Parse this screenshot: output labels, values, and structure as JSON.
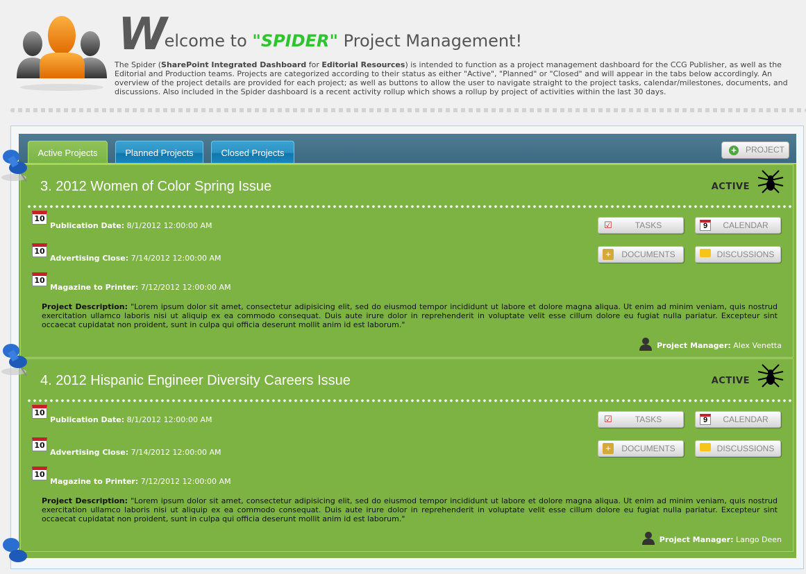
{
  "header": {
    "welcome_initial": "W",
    "welcome_rest": "elcome to ",
    "welcome_brand": "\"SPIDER\"",
    "welcome_suffix": " Project Management!",
    "intro": {
      "p1": "The Spider (",
      "b1": "SharePoint Integrated Dashboard",
      "p2": " for ",
      "b2": "Editorial Resources",
      "p3": ") is intended to function as a project management dashboard for the CCG Publisher, as well as the Editorial and Production teams. Projects are categorized according to their status as either \"Active\", \"Planned\" or \"Closed\" and will appear in the tabs below accordingly. An overview of the project details are provided for each project; as well as buttons to allow the user to navigate straight to the project tasks, calendar/milestones, documents, and discussions. Also included in the Spider dashboard is a recent activity rollup which shows a rollup by project of activities within the last 30 days."
    }
  },
  "tabs": [
    {
      "label": "Active Projects",
      "active": true
    },
    {
      "label": "Planned Projects",
      "active": false
    },
    {
      "label": "Closed Projects",
      "active": false
    }
  ],
  "add_project_label": "PROJECT",
  "labels": {
    "publication": "Publication Date:",
    "advertising": "Advertising Close:",
    "printer": "Magazine to Printer:",
    "description": "Project Description:",
    "manager": "Project Manager:",
    "calendar_day": "10",
    "tasks": "TASKS",
    "calendar": "CALENDAR",
    "documents": "DOCUMENTS",
    "discussions": "DISCUSSIONS",
    "calendar_icon_day": "9"
  },
  "projects": [
    {
      "title": "3. 2012 Women of Color Spring Issue",
      "status": "ACTIVE",
      "publication": "8/1/2012 12:00:00 AM",
      "advertising": "7/14/2012 12:00:00 AM",
      "printer": "7/12/2012 12:00:00 AM",
      "description": "\"Lorem ipsum dolor sit amet, consectetur adipisicing elit, sed do eiusmod tempor incididunt ut labore et dolore magna aliqua. Ut enim ad minim veniam, quis nostrud exercitation ullamco laboris nisi ut aliquip ex ea commodo consequat. Duis aute irure dolor in reprehenderit in voluptate velit esse cillum dolore eu fugiat nulla pariatur. Excepteur sint occaecat cupidatat non proident, sunt in culpa qui officia deserunt mollit anim id est laborum.\"",
      "manager": "Alex Venetta"
    },
    {
      "title": "4. 2012 Hispanic Engineer Diversity Careers Issue",
      "status": "ACTIVE",
      "publication": "8/1/2012 12:00:00 AM",
      "advertising": "7/14/2012 12:00:00 AM",
      "printer": "7/12/2012 12:00:00 AM",
      "description": "\"Lorem ipsum dolor sit amet, consectetur adipisicing elit, sed do eiusmod tempor incididunt ut labore et dolore magna aliqua. Ut enim ad minim veniam, quis nostrud exercitation ullamco laboris nisi ut aliquip ex ea commodo consequat. Duis aute irure dolor in reprehenderit in voluptate velit esse cillum dolore eu fugiat nulla pariatur. Excepteur sint occaecat cupidatat non proident, sunt in culpa qui officia deserunt mollit anim id est laborum.\"",
      "manager": "Lango Deen"
    }
  ],
  "colors": {
    "panel": "#7cb342",
    "tab_bar": "#3c6983",
    "brand": "#2fc42f",
    "tab_blue": "#1c87bd"
  }
}
